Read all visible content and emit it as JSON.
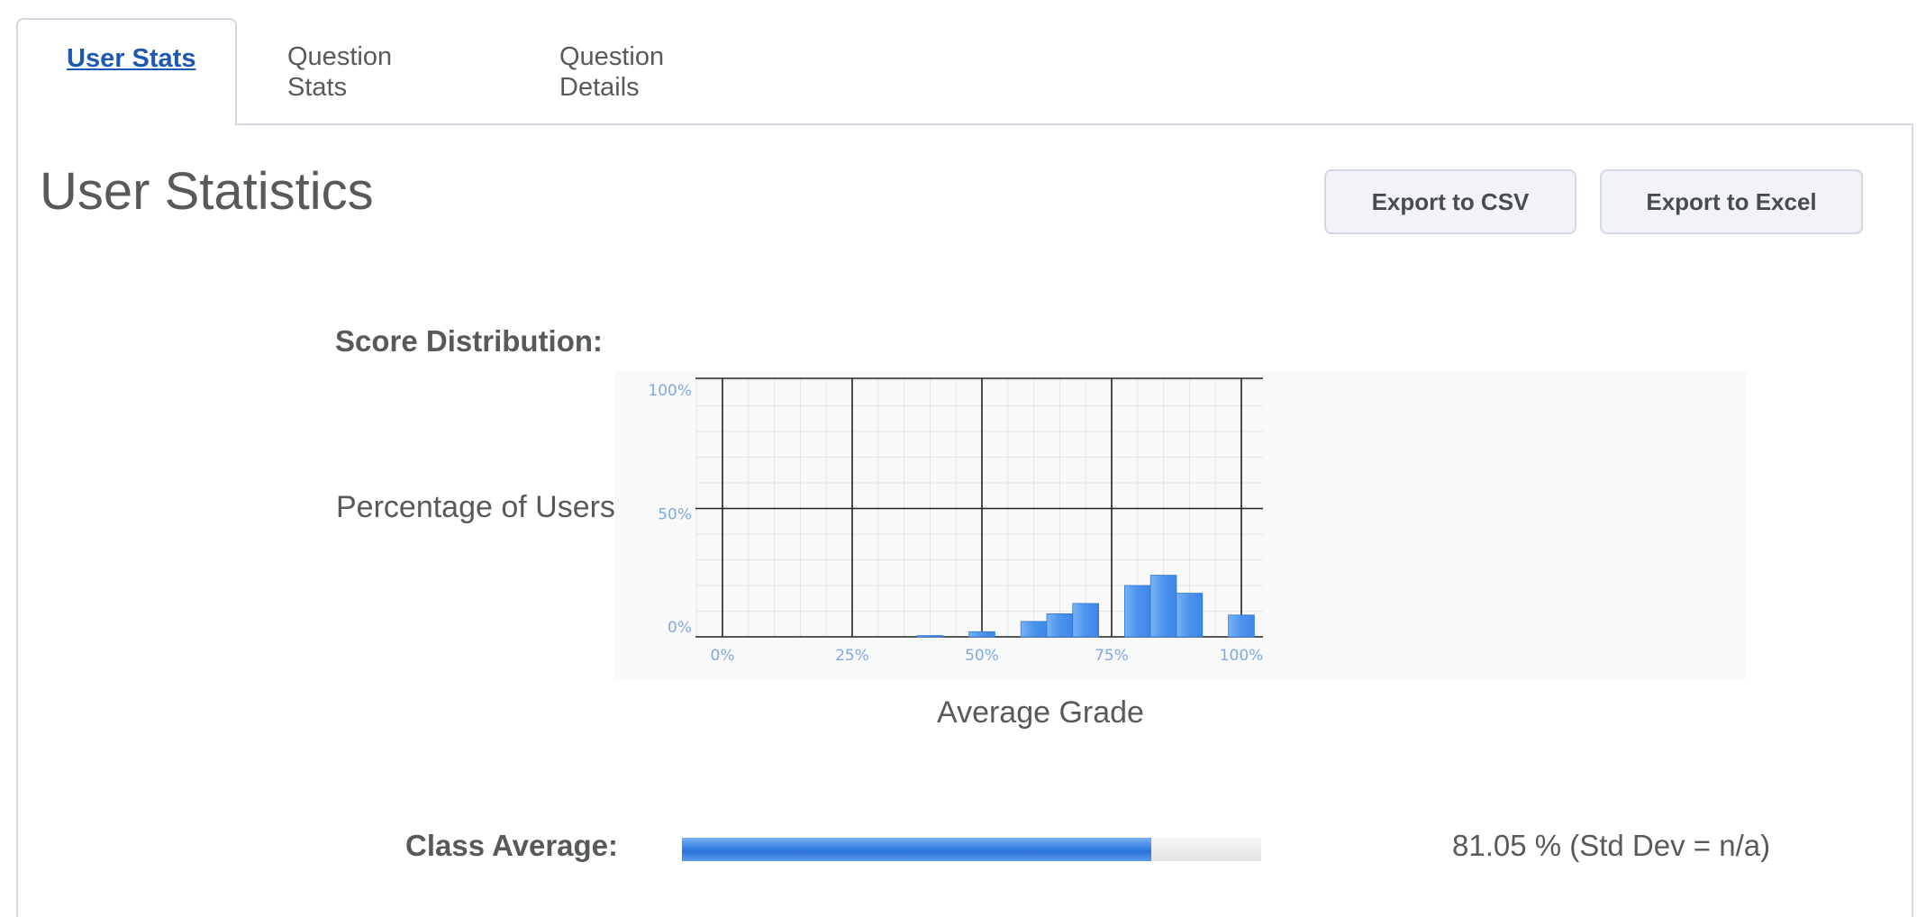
{
  "tabs": [
    {
      "label": "User Stats",
      "active": true
    },
    {
      "label": "Question Stats",
      "active": false
    },
    {
      "label": "Question Details",
      "active": false
    }
  ],
  "page_title": "User Statistics",
  "buttons": {
    "export_csv": "Export to CSV",
    "export_excel": "Export to Excel"
  },
  "score_distribution_label": "Score Distribution:",
  "chart_data": {
    "type": "bar",
    "title": "",
    "xlabel": "Average Grade",
    "ylabel": "Percentage of Users",
    "xlim": [
      0,
      100
    ],
    "ylim": [
      0,
      100
    ],
    "x_ticks": [
      "0%",
      "25%",
      "50%",
      "75%",
      "100%"
    ],
    "y_ticks": [
      "100%",
      "50%",
      "0%"
    ],
    "bin_width": 5,
    "bins": [
      {
        "x": 40,
        "value": 0.5
      },
      {
        "x": 50,
        "value": 2
      },
      {
        "x": 60,
        "value": 6
      },
      {
        "x": 65,
        "value": 9
      },
      {
        "x": 70,
        "value": 13
      },
      {
        "x": 80,
        "value": 20
      },
      {
        "x": 85,
        "value": 24
      },
      {
        "x": 90,
        "value": 17
      },
      {
        "x": 100,
        "value": 8.5
      }
    ],
    "grid": true,
    "colors": {
      "bar": "#4f95ee",
      "bar_edge": "#2f78dc",
      "tick": "#7fa9e0"
    }
  },
  "class_average": {
    "label": "Class Average:",
    "value_fraction": 0.81,
    "text": "81.05 % (Std Dev = n/a)"
  }
}
